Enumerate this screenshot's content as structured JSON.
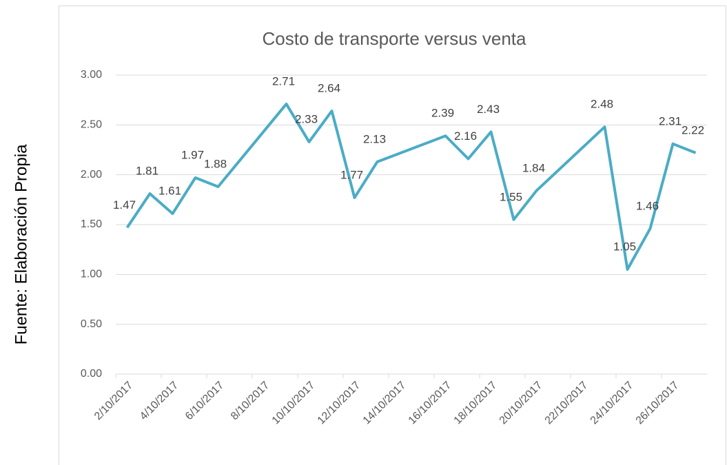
{
  "chart_data": {
    "type": "line",
    "title": "Costo de transporte versus venta",
    "source": "Fuente: Elaboración Propia",
    "x": [
      "2/10/2017",
      "3/10/2017",
      "4/10/2017",
      "5/10/2017",
      "6/10/2017",
      "9/10/2017",
      "10/10/2017",
      "11/10/2017",
      "12/10/2017",
      "13/10/2017",
      "16/10/2017",
      "17/10/2017",
      "18/10/2017",
      "19/10/2017",
      "20/10/2017",
      "23/10/2017",
      "24/10/2017",
      "25/10/2017",
      "26/10/2017",
      "27/10/2017"
    ],
    "series": [
      {
        "name": "Costo de transporte versus venta",
        "color": "#4bacc6",
        "values": [
          1.47,
          1.81,
          1.61,
          1.97,
          1.88,
          2.71,
          2.33,
          2.64,
          1.77,
          2.13,
          2.39,
          2.16,
          2.43,
          1.55,
          1.84,
          2.48,
          1.05,
          1.46,
          2.31,
          2.22
        ]
      }
    ],
    "xlim": [
      "2/10/2017",
      "27/10/2017"
    ],
    "xticks": [
      "2/10/2017",
      "4/10/2017",
      "6/10/2017",
      "8/10/2017",
      "10/10/2017",
      "12/10/2017",
      "14/10/2017",
      "16/10/2017",
      "18/10/2017",
      "20/10/2017",
      "22/10/2017",
      "24/10/2017",
      "26/10/2017"
    ],
    "ylim": [
      0,
      3
    ],
    "yticks": [
      {
        "value": 0,
        "label": "0.00"
      },
      {
        "value": 0.5,
        "label": "0.50"
      },
      {
        "value": 1,
        "label": "1.00"
      },
      {
        "value": 1.5,
        "label": "1.50"
      },
      {
        "value": 2,
        "label": "2.00"
      },
      {
        "value": 2.5,
        "label": "2.50"
      },
      {
        "value": 3,
        "label": "3.00"
      }
    ],
    "grid": true,
    "data_labels": true
  }
}
